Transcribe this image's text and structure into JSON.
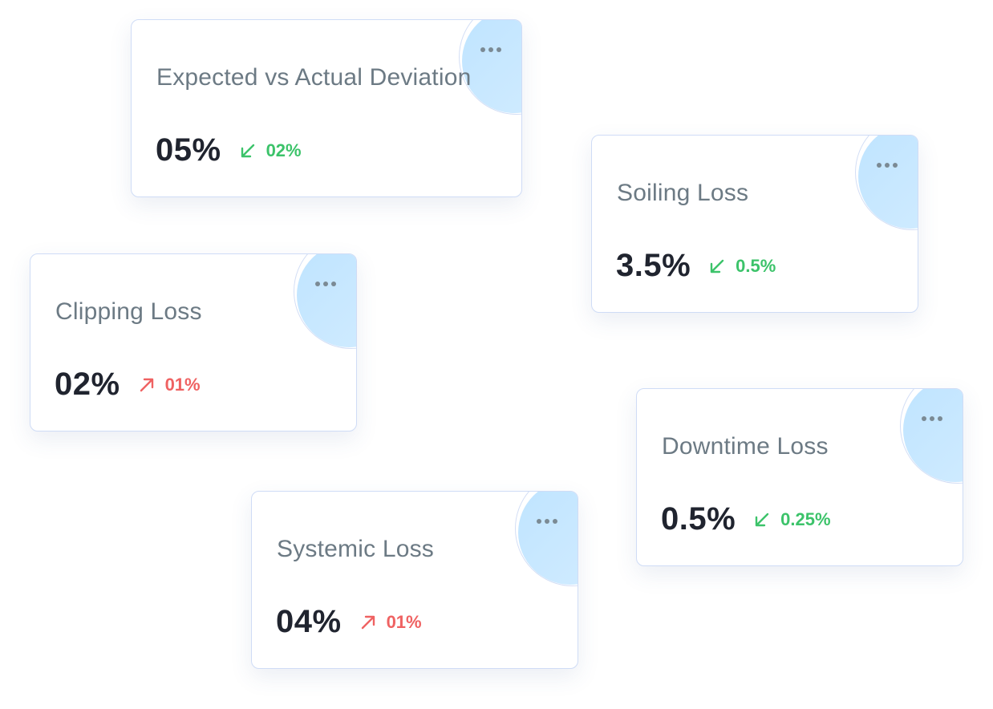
{
  "cards": [
    {
      "title": "Expected vs Actual Deviation",
      "value": "05%",
      "change": "02%",
      "direction": "down"
    },
    {
      "title": "Soiling Loss",
      "value": "3.5%",
      "change": "0.5%",
      "direction": "down"
    },
    {
      "title": "Clipping Loss",
      "value": "02%",
      "change": "01%",
      "direction": "up"
    },
    {
      "title": "Downtime Loss",
      "value": "0.5%",
      "change": "0.25%",
      "direction": "down"
    },
    {
      "title": "Systemic Loss",
      "value": "04%",
      "change": "01%",
      "direction": "up"
    }
  ],
  "icons": {
    "menu": "more-horizontal-icon",
    "down": "arrow-down-left-icon",
    "up": "arrow-up-right-icon"
  },
  "colors": {
    "positive": "#3cc36a",
    "negative": "#ef6262",
    "accent": "#bfe4ff",
    "border": "#cfdcf6"
  }
}
